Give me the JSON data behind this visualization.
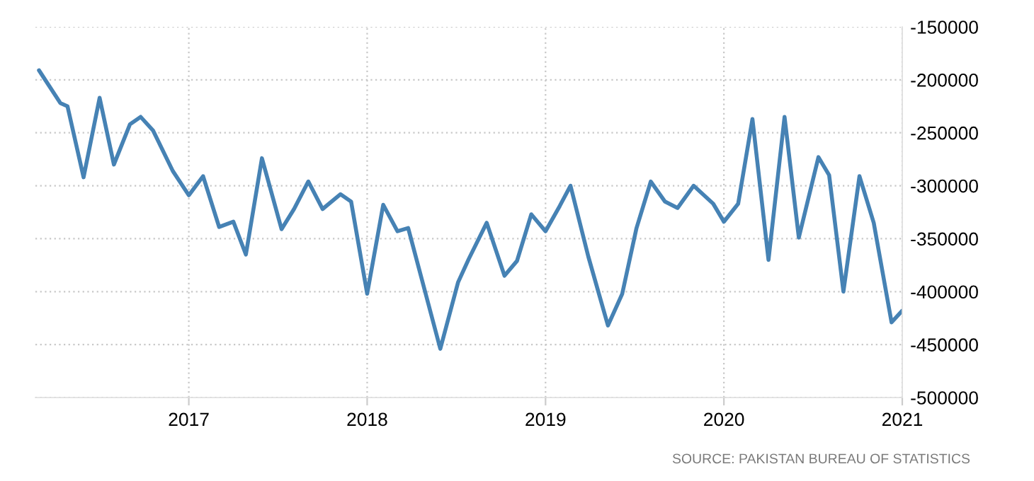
{
  "chart_data": {
    "type": "line",
    "series": [
      {
        "color": "#4682b4",
        "x": [
          2016.16,
          2016.28,
          2016.32,
          2016.41,
          2016.5,
          2016.58,
          2016.67,
          2016.73,
          2016.8,
          2016.91,
          2017.0,
          2017.08,
          2017.17,
          2017.25,
          2017.32,
          2017.41,
          2017.52,
          2017.59,
          2017.67,
          2017.75,
          2017.85,
          2017.91,
          2018.0,
          2018.09,
          2018.17,
          2018.23,
          2018.41,
          2018.51,
          2018.57,
          2018.67,
          2018.77,
          2018.84,
          2018.92,
          2019.0,
          2019.08,
          2019.14,
          2019.24,
          2019.35,
          2019.43,
          2019.51,
          2019.59,
          2019.67,
          2019.74,
          2019.83,
          2019.94,
          2020.0,
          2020.08,
          2020.16,
          2020.25,
          2020.34,
          2020.42,
          2020.53,
          2020.59,
          2020.67,
          2020.76,
          2020.84,
          2020.94,
          2021.0
        ],
        "values": [
          -191000,
          -222000,
          -225000,
          -292000,
          -217000,
          -280000,
          -242000,
          -235000,
          -248000,
          -286000,
          -309000,
          -291000,
          -339000,
          -334000,
          -365000,
          -274000,
          -341000,
          -322000,
          -296000,
          -322000,
          -308000,
          -315000,
          -402000,
          -318000,
          -343000,
          -340000,
          -454000,
          -391000,
          -369000,
          -335000,
          -385000,
          -371000,
          -327000,
          -343000,
          -319000,
          -300000,
          -367000,
          -432000,
          -402000,
          -340000,
          -296000,
          -315000,
          -321000,
          -300000,
          -317000,
          -334000,
          -317000,
          -237000,
          -370000,
          -235000,
          -349000,
          -273000,
          -290000,
          -400000,
          -291000,
          -335000,
          -429000,
          -418000
        ]
      }
    ],
    "xlim": [
      2016.14,
      2021.0
    ],
    "xticks": [
      2017,
      2018,
      2019,
      2020,
      2021
    ],
    "ylim": [
      -500000,
      -150000
    ],
    "yticks": [
      -500000,
      -450000,
      -400000,
      -350000,
      -300000,
      -250000,
      -200000,
      -150000
    ],
    "grid": true,
    "line_style": "solid",
    "annotations": [
      "SOURCE: PAKISTAN BUREAU OF STATISTICS"
    ]
  }
}
